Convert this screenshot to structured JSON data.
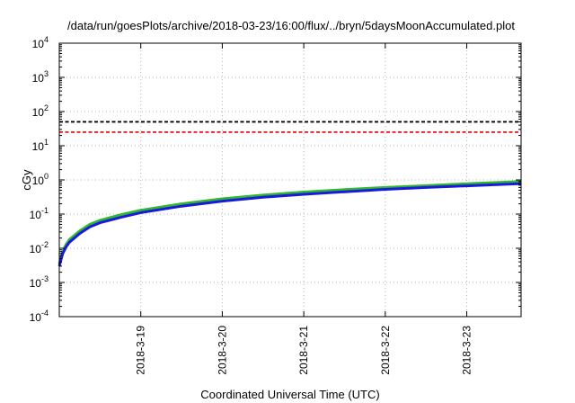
{
  "chart_data": {
    "type": "line",
    "title": "/data/run/goesPlots/archive/2018-03-23/16:00/flux/../bryn/5daysMoonAccumulated.plot",
    "xlabel": "Coordinated Universal Time (UTC)",
    "ylabel": "cGy",
    "y_scale": "log",
    "ylim": [
      0.0001,
      10000
    ],
    "y_ticks": [
      {
        "base": "10",
        "exp": "-4",
        "value": 0.0001
      },
      {
        "base": "10",
        "exp": "-3",
        "value": 0.001
      },
      {
        "base": "10",
        "exp": "-2",
        "value": 0.01
      },
      {
        "base": "10",
        "exp": "-1",
        "value": 0.1
      },
      {
        "base": "10",
        "exp": "0",
        "value": 1
      },
      {
        "base": "10",
        "exp": "1",
        "value": 10
      },
      {
        "base": "10",
        "exp": "2",
        "value": 100
      },
      {
        "base": "10",
        "exp": "3",
        "value": 1000
      },
      {
        "base": "10",
        "exp": "4",
        "value": 10000
      }
    ],
    "xlim": [
      "2018-03-18 00:00",
      "2018-03-23 16:00"
    ],
    "x_ticks": [
      "2018-3-19",
      "2018-3-20",
      "2018-3-21",
      "2018-3-22",
      "2018-3-23"
    ],
    "x_tick_values": [
      "2018-03-19",
      "2018-03-20",
      "2018-03-21",
      "2018-03-22",
      "2018-03-23"
    ],
    "grid": true,
    "reference_lines": [
      {
        "y": 50,
        "color": "#000000",
        "style": "dashed"
      },
      {
        "y": 25,
        "color": "#e8141c",
        "style": "dashed"
      }
    ],
    "series": [
      {
        "color": "#2fb82f",
        "x": [
          "2018-03-18 00:00",
          "2018-03-18 01:00",
          "2018-03-18 02:00",
          "2018-03-18 03:00",
          "2018-03-18 06:00",
          "2018-03-18 09:00",
          "2018-03-18 12:00",
          "2018-03-18 18:00",
          "2018-03-19 00:00",
          "2018-03-19 12:00",
          "2018-03-20 00:00",
          "2018-03-20 12:00",
          "2018-03-21 00:00",
          "2018-03-21 12:00",
          "2018-03-22 00:00",
          "2018-03-22 12:00",
          "2018-03-23 00:00",
          "2018-03-23 16:00"
        ],
        "y": [
          0.0035,
          0.008,
          0.013,
          0.018,
          0.032,
          0.05,
          0.066,
          0.095,
          0.13,
          0.2,
          0.28,
          0.36,
          0.44,
          0.52,
          0.6,
          0.68,
          0.77,
          0.9
        ]
      },
      {
        "color": "#1a1adc",
        "x": [
          "2018-03-18 00:00",
          "2018-03-18 01:00",
          "2018-03-18 02:00",
          "2018-03-18 03:00",
          "2018-03-18 06:00",
          "2018-03-18 09:00",
          "2018-03-18 12:00",
          "2018-03-18 18:00",
          "2018-03-19 00:00",
          "2018-03-19 12:00",
          "2018-03-20 00:00",
          "2018-03-20 12:00",
          "2018-03-21 00:00",
          "2018-03-21 12:00",
          "2018-03-22 00:00",
          "2018-03-22 12:00",
          "2018-03-23 00:00",
          "2018-03-23 16:00"
        ],
        "y": [
          0.003,
          0.007,
          0.011,
          0.015,
          0.027,
          0.042,
          0.056,
          0.08,
          0.11,
          0.17,
          0.24,
          0.31,
          0.38,
          0.45,
          0.53,
          0.6,
          0.67,
          0.78
        ]
      }
    ]
  }
}
